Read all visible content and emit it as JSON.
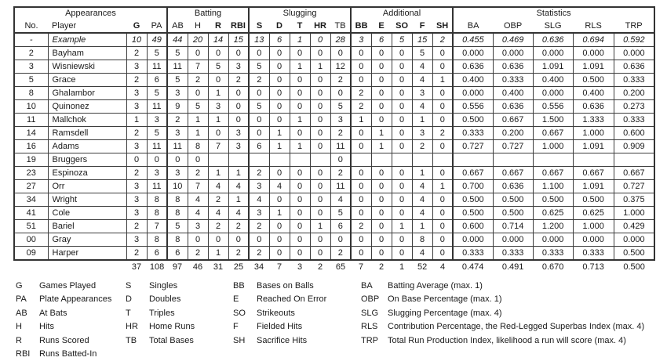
{
  "table": {
    "groups": [
      {
        "label": "Appearances",
        "span": 4
      },
      {
        "label": "Batting",
        "span": 4
      },
      {
        "label": "Slugging",
        "span": 5
      },
      {
        "label": "Additional",
        "span": 5
      },
      {
        "label": "Statistics",
        "span": 5
      }
    ],
    "columns": [
      {
        "key": "no",
        "label": "No.",
        "bold": false
      },
      {
        "key": "player",
        "label": "Player",
        "bold": false
      },
      {
        "key": "g",
        "label": "G",
        "bold": true
      },
      {
        "key": "pa",
        "label": "PA",
        "bold": false
      },
      {
        "key": "ab",
        "label": "AB",
        "bold": false
      },
      {
        "key": "h",
        "label": "H",
        "bold": false
      },
      {
        "key": "r",
        "label": "R",
        "bold": true
      },
      {
        "key": "rbi",
        "label": "RBI",
        "bold": true
      },
      {
        "key": "s",
        "label": "S",
        "bold": true
      },
      {
        "key": "d",
        "label": "D",
        "bold": true
      },
      {
        "key": "t",
        "label": "T",
        "bold": true
      },
      {
        "key": "hr",
        "label": "HR",
        "bold": true
      },
      {
        "key": "tb",
        "label": "TB",
        "bold": false
      },
      {
        "key": "bb",
        "label": "BB",
        "bold": true
      },
      {
        "key": "e",
        "label": "E",
        "bold": true
      },
      {
        "key": "so",
        "label": "SO",
        "bold": true
      },
      {
        "key": "f",
        "label": "F",
        "bold": true
      },
      {
        "key": "sh",
        "label": "SH",
        "bold": true
      },
      {
        "key": "ba",
        "label": "BA",
        "bold": false
      },
      {
        "key": "obp",
        "label": "OBP",
        "bold": false
      },
      {
        "key": "slg",
        "label": "SLG",
        "bold": false
      },
      {
        "key": "rls",
        "label": "RLS",
        "bold": false
      },
      {
        "key": "trp",
        "label": "TRP",
        "bold": false
      }
    ],
    "rows": [
      {
        "italic": true,
        "cells": [
          "-",
          "Example",
          "10",
          "49",
          "44",
          "20",
          "14",
          "15",
          "13",
          "6",
          "1",
          "0",
          "28",
          "3",
          "6",
          "5",
          "15",
          "2",
          "0.455",
          "0.469",
          "0.636",
          "0.694",
          "0.592"
        ]
      },
      {
        "italic": false,
        "cells": [
          "2",
          "Bayham",
          "2",
          "5",
          "5",
          "0",
          "0",
          "0",
          "0",
          "0",
          "0",
          "0",
          "0",
          "0",
          "0",
          "0",
          "5",
          "0",
          "0.000",
          "0.000",
          "0.000",
          "0.000",
          "0.000"
        ]
      },
      {
        "italic": false,
        "cells": [
          "3",
          "Wisniewski",
          "3",
          "11",
          "11",
          "7",
          "5",
          "3",
          "5",
          "0",
          "1",
          "1",
          "12",
          "0",
          "0",
          "0",
          "4",
          "0",
          "0.636",
          "0.636",
          "1.091",
          "1.091",
          "0.636"
        ]
      },
      {
        "italic": false,
        "cells": [
          "5",
          "Grace",
          "2",
          "6",
          "5",
          "2",
          "0",
          "2",
          "2",
          "0",
          "0",
          "0",
          "2",
          "0",
          "0",
          "0",
          "4",
          "1",
          "0.400",
          "0.333",
          "0.400",
          "0.500",
          "0.333"
        ]
      },
      {
        "italic": false,
        "cells": [
          "8",
          "Ghalambor",
          "3",
          "5",
          "3",
          "0",
          "1",
          "0",
          "0",
          "0",
          "0",
          "0",
          "0",
          "2",
          "0",
          "0",
          "3",
          "0",
          "0.000",
          "0.400",
          "0.000",
          "0.400",
          "0.200"
        ]
      },
      {
        "italic": false,
        "cells": [
          "10",
          "Quinonez",
          "3",
          "11",
          "9",
          "5",
          "3",
          "0",
          "5",
          "0",
          "0",
          "0",
          "5",
          "2",
          "0",
          "0",
          "4",
          "0",
          "0.556",
          "0.636",
          "0.556",
          "0.636",
          "0.273"
        ]
      },
      {
        "italic": false,
        "cells": [
          "11",
          "Mallchok",
          "1",
          "3",
          "2",
          "1",
          "1",
          "0",
          "0",
          "0",
          "1",
          "0",
          "3",
          "1",
          "0",
          "0",
          "1",
          "0",
          "0.500",
          "0.667",
          "1.500",
          "1.333",
          "0.333"
        ]
      },
      {
        "italic": false,
        "cells": [
          "14",
          "Ramsdell",
          "2",
          "5",
          "3",
          "1",
          "0",
          "3",
          "0",
          "1",
          "0",
          "0",
          "2",
          "0",
          "1",
          "0",
          "3",
          "2",
          "0.333",
          "0.200",
          "0.667",
          "1.000",
          "0.600"
        ]
      },
      {
        "italic": false,
        "cells": [
          "16",
          "Adams",
          "3",
          "11",
          "11",
          "8",
          "7",
          "3",
          "6",
          "1",
          "1",
          "0",
          "11",
          "0",
          "1",
          "0",
          "2",
          "0",
          "0.727",
          "0.727",
          "1.000",
          "1.091",
          "0.909"
        ]
      },
      {
        "italic": false,
        "cells": [
          "19",
          "Bruggers",
          "0",
          "0",
          "0",
          "0",
          "",
          "",
          "",
          "",
          "",
          "",
          "0",
          "",
          "",
          "",
          "",
          "",
          "",
          "",
          "",
          "",
          ""
        ]
      },
      {
        "italic": false,
        "cells": [
          "23",
          "Espinoza",
          "2",
          "3",
          "3",
          "2",
          "1",
          "1",
          "2",
          "0",
          "0",
          "0",
          "2",
          "0",
          "0",
          "0",
          "1",
          "0",
          "0.667",
          "0.667",
          "0.667",
          "0.667",
          "0.667"
        ]
      },
      {
        "italic": false,
        "cells": [
          "27",
          "Orr",
          "3",
          "11",
          "10",
          "7",
          "4",
          "4",
          "3",
          "4",
          "0",
          "0",
          "11",
          "0",
          "0",
          "0",
          "4",
          "1",
          "0.700",
          "0.636",
          "1.100",
          "1.091",
          "0.727"
        ]
      },
      {
        "italic": false,
        "cells": [
          "34",
          "Wright",
          "3",
          "8",
          "8",
          "4",
          "2",
          "1",
          "4",
          "0",
          "0",
          "0",
          "4",
          "0",
          "0",
          "0",
          "4",
          "0",
          "0.500",
          "0.500",
          "0.500",
          "0.500",
          "0.375"
        ]
      },
      {
        "italic": false,
        "cells": [
          "41",
          "Cole",
          "3",
          "8",
          "8",
          "4",
          "4",
          "4",
          "3",
          "1",
          "0",
          "0",
          "5",
          "0",
          "0",
          "0",
          "4",
          "0",
          "0.500",
          "0.500",
          "0.625",
          "0.625",
          "1.000"
        ]
      },
      {
        "italic": false,
        "cells": [
          "51",
          "Bariel",
          "2",
          "7",
          "5",
          "3",
          "2",
          "2",
          "2",
          "0",
          "0",
          "1",
          "6",
          "2",
          "0",
          "1",
          "1",
          "0",
          "0.600",
          "0.714",
          "1.200",
          "1.000",
          "0.429"
        ]
      },
      {
        "italic": false,
        "cells": [
          "00",
          "Gray",
          "3",
          "8",
          "8",
          "0",
          "0",
          "0",
          "0",
          "0",
          "0",
          "0",
          "0",
          "0",
          "0",
          "0",
          "8",
          "0",
          "0.000",
          "0.000",
          "0.000",
          "0.000",
          "0.000"
        ]
      },
      {
        "italic": false,
        "cells": [
          "09",
          "Harper",
          "2",
          "6",
          "6",
          "2",
          "1",
          "2",
          "2",
          "0",
          "0",
          "0",
          "2",
          "0",
          "0",
          "0",
          "4",
          "0",
          "0.333",
          "0.333",
          "0.333",
          "0.333",
          "0.500"
        ]
      }
    ],
    "totals": [
      "",
      "",
      "37",
      "108",
      "97",
      "46",
      "31",
      "25",
      "34",
      "7",
      "3",
      "2",
      "65",
      "7",
      "2",
      "1",
      "52",
      "4",
      "0.474",
      "0.491",
      "0.670",
      "0.713",
      "0.500"
    ]
  },
  "legend": {
    "columns": [
      {
        "items": [
          {
            "abbr": "G",
            "text": "Games Played"
          },
          {
            "abbr": "PA",
            "text": "Plate Appearances"
          },
          {
            "abbr": "AB",
            "text": "At Bats"
          },
          {
            "abbr": "H",
            "text": "Hits"
          },
          {
            "abbr": "R",
            "text": "Runs Scored"
          },
          {
            "abbr": "RBI",
            "text": "Runs Batted-In"
          }
        ]
      },
      {
        "items": [
          {
            "abbr": "S",
            "text": "Singles"
          },
          {
            "abbr": "D",
            "text": "Doubles"
          },
          {
            "abbr": "T",
            "text": "Triples"
          },
          {
            "abbr": "HR",
            "text": "Home Runs"
          },
          {
            "abbr": "TB",
            "text": "Total Bases"
          }
        ]
      },
      {
        "items": [
          {
            "abbr": "BB",
            "text": "Bases on Balls"
          },
          {
            "abbr": "E",
            "text": "Reached On Error"
          },
          {
            "abbr": "SO",
            "text": "Strikeouts"
          },
          {
            "abbr": "F",
            "text": "Fielded Hits"
          },
          {
            "abbr": "SH",
            "text": "Sacrifice Hits"
          }
        ]
      },
      {
        "items": [
          {
            "abbr": "BA",
            "text": "Batting Average (max. 1)"
          },
          {
            "abbr": "OBP",
            "text": "On Base Percentage (max. 1)"
          },
          {
            "abbr": "SLG",
            "text": "Slugging Percentage (max. 4)"
          },
          {
            "abbr": "RLS",
            "text": "Contribution Percentage, the Red-Legged Superbas Index (max. 4)"
          },
          {
            "abbr": "TRP",
            "text": "Total Run Production Index, likelihood a run will score (max. 4)"
          }
        ]
      }
    ]
  }
}
